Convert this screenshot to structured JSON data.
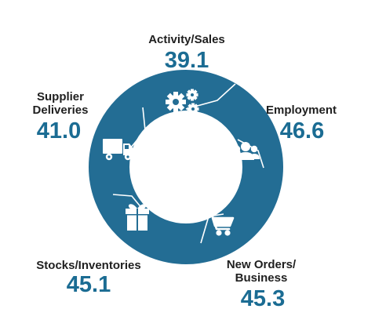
{
  "colors": {
    "ring": "#236d94",
    "seam": "#ffffff",
    "value": "#1b6c93",
    "label": "#1f1f1f"
  },
  "segments": [
    {
      "id": "activity",
      "label_lines": [
        "Activity/Sales"
      ],
      "value": "39.1",
      "icon": "gears-icon"
    },
    {
      "id": "employment",
      "label_lines": [
        "Employment"
      ],
      "value": "46.6",
      "icon": "people-icon"
    },
    {
      "id": "new-orders",
      "label_lines": [
        "New Orders/",
        "Business"
      ],
      "value": "45.3",
      "icon": "shopping-cart-icon"
    },
    {
      "id": "stocks",
      "label_lines": [
        "Stocks/Inventories"
      ],
      "value": "45.1",
      "icon": "gift-box-icon"
    },
    {
      "id": "supplier",
      "label_lines": [
        "Supplier",
        "Deliveries"
      ],
      "value": "41.0",
      "icon": "truck-icon"
    }
  ]
}
